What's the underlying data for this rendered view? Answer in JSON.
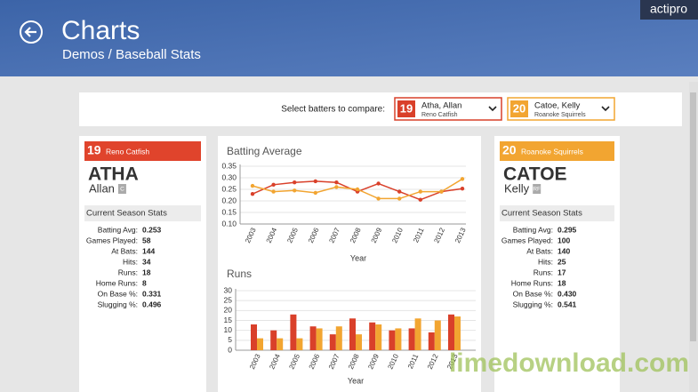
{
  "header": {
    "title": "Charts",
    "breadcrumb": "Demos / Baseball Stats",
    "brand": "actipro"
  },
  "selector": {
    "prompt": "Select batters to compare:",
    "options": [
      {
        "number": "19",
        "name": "Atha, Allan",
        "team": "Reno Catfish",
        "color": "#d9402a"
      },
      {
        "number": "20",
        "name": "Catoe, Kelly",
        "team": "Roanoke Squirrels",
        "color": "#f2a531"
      }
    ]
  },
  "players": [
    {
      "number": "19",
      "team": "Reno Catfish",
      "last": "ATHA",
      "first": "Allan",
      "position": "C",
      "color": "#e0442c",
      "section": "Current Season Stats",
      "stats": [
        {
          "label": "Batting Avg:",
          "value": "0.253"
        },
        {
          "label": "Games Played:",
          "value": "58"
        },
        {
          "label": "At Bats:",
          "value": "144"
        },
        {
          "label": "Hits:",
          "value": "34"
        },
        {
          "label": "Runs:",
          "value": "18"
        },
        {
          "label": "Home Runs:",
          "value": "8"
        },
        {
          "label": "On Base %:",
          "value": "0.331"
        },
        {
          "label": "Slugging %:",
          "value": "0.496"
        }
      ]
    },
    {
      "number": "20",
      "team": "Roanoke Squirrels",
      "last": "CATOE",
      "first": "Kelly",
      "position": "RF",
      "color": "#f2a531",
      "section": "Current Season Stats",
      "stats": [
        {
          "label": "Batting Avg:",
          "value": "0.295"
        },
        {
          "label": "Games Played:",
          "value": "100"
        },
        {
          "label": "At Bats:",
          "value": "140"
        },
        {
          "label": "Hits:",
          "value": "25"
        },
        {
          "label": "Runs:",
          "value": "17"
        },
        {
          "label": "Home Runs:",
          "value": "18"
        },
        {
          "label": "On Base %:",
          "value": "0.430"
        },
        {
          "label": "Slugging %:",
          "value": "0.541"
        }
      ]
    }
  ],
  "chart_data": [
    {
      "type": "line",
      "title": "Batting Average",
      "x_label": "Year",
      "categories": [
        "2003",
        "2004",
        "2005",
        "2006",
        "2007",
        "2008",
        "2009",
        "2010",
        "2011",
        "2012",
        "2013"
      ],
      "series": [
        {
          "color": "#d9402a",
          "values": [
            0.23,
            0.27,
            0.28,
            0.285,
            0.28,
            0.24,
            0.275,
            0.24,
            0.205,
            0.24,
            0.253
          ]
        },
        {
          "color": "#f2a531",
          "values": [
            0.265,
            0.24,
            0.245,
            0.235,
            0.26,
            0.25,
            0.21,
            0.21,
            0.24,
            0.24,
            0.295
          ]
        }
      ],
      "ylim": [
        0.1,
        0.35
      ],
      "yticks": [
        {
          "value": 0.1,
          "label": "0.10"
        },
        0.15,
        {
          "value": 0.2,
          "label": "0.20"
        },
        0.25,
        {
          "value": 0.3,
          "label": "0.30"
        },
        0.35
      ],
      "grid": true
    },
    {
      "type": "bar",
      "title": "Runs",
      "x_label": "Year",
      "categories": [
        "2003",
        "2004",
        "2005",
        "2006",
        "2007",
        "2008",
        "2009",
        "2010",
        "2011",
        "2012",
        "2013"
      ],
      "series": [
        {
          "color": "#d9402a",
          "values": [
            13,
            10,
            18,
            12,
            8,
            16,
            14,
            10,
            11,
            9,
            18
          ]
        },
        {
          "color": "#f2a531",
          "values": [
            6,
            6,
            6,
            11,
            12,
            8,
            13,
            11,
            16,
            15,
            17
          ]
        }
      ],
      "ylim": [
        0,
        30
      ],
      "yticks": [
        0,
        5,
        10,
        15,
        20,
        25,
        30
      ],
      "grid": true
    }
  ],
  "watermark": "limedownload.com"
}
